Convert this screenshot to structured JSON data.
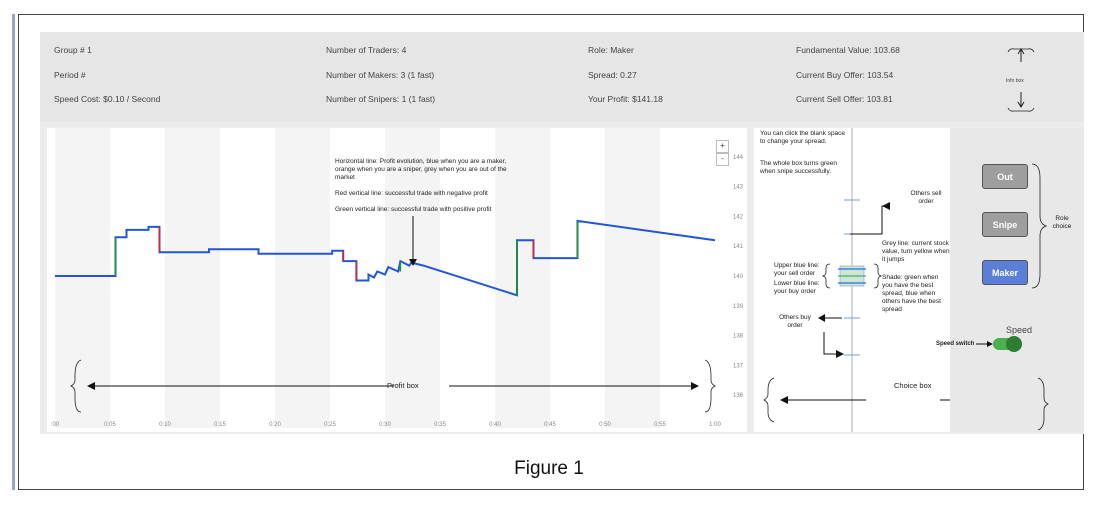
{
  "info": {
    "group": "Group # 1",
    "period": "Period #",
    "speed_cost": "Speed Cost: $0.10 / Second",
    "num_traders": "Number of Traders: 4",
    "num_makers": "Number of Makers: 3 (1 fast)",
    "num_snipers": "Number of Snipers: 1 (1 fast)",
    "role": "Role: Maker",
    "spread": "Spread: 0.27",
    "profit": "Your Profit: $141.18",
    "fundamental": "Fundamental Value: 103.68",
    "buy_offer": "Current Buy Offer: 103.54",
    "sell_offer": "Current Sell Offer: 103.81",
    "info_box_label": "Info box"
  },
  "chart": {
    "plus": "+",
    "minus": "-",
    "ann_profit": "Horizontal line: Profit evolution, blue when you are a maker, orange when you are a sniper, grey when you are out of the market",
    "ann_red": "Red vertical line: successful trade with negative profit",
    "ann_green": "Green vertical line: successful trade with positive profit",
    "profit_box_label": "Profit box",
    "colors": {
      "line": "#2255dd",
      "red": "#dd2222",
      "green": "#229922"
    }
  },
  "chart_data": {
    "type": "line",
    "x_ticks": [
      ":00",
      "0:05",
      "0:10",
      "0:15",
      "0:20",
      "0:25",
      "0:30",
      "0:35",
      "0:40",
      "0:45",
      "0:50",
      "0:55",
      "1:00"
    ],
    "y_ticks": [
      "144",
      "143",
      "142",
      "141",
      "140",
      "139",
      "138",
      "137",
      "136"
    ],
    "ylim": [
      135.7,
      144.3
    ],
    "xlim": [
      0,
      60
    ],
    "series": [
      {
        "values": [
          [
            0,
            140.0
          ],
          [
            5.5,
            140.0
          ],
          [
            5.5,
            141.3
          ],
          [
            6.5,
            141.3
          ],
          [
            6.5,
            141.55
          ],
          [
            8.5,
            141.55
          ],
          [
            8.5,
            141.65
          ],
          [
            9.5,
            141.65
          ],
          [
            9.5,
            140.8
          ],
          [
            14,
            140.8
          ],
          [
            14,
            140.9
          ],
          [
            18.5,
            140.9
          ],
          [
            18.5,
            140.75
          ],
          [
            25.2,
            140.75
          ],
          [
            25.2,
            140.85
          ],
          [
            26.2,
            140.85
          ],
          [
            26.2,
            140.5
          ],
          [
            27.4,
            140.5
          ],
          [
            27.4,
            139.85
          ],
          [
            28.5,
            139.85
          ],
          [
            28.5,
            140.05
          ],
          [
            29.0,
            139.95
          ],
          [
            29.3,
            140.15
          ],
          [
            30,
            140.05
          ],
          [
            30.3,
            140.3
          ],
          [
            31.2,
            140.15
          ],
          [
            31.4,
            140.5
          ],
          [
            32.2,
            140.35
          ],
          [
            32.4,
            140.45
          ],
          [
            33.5,
            140.35
          ],
          [
            42,
            139.35
          ],
          [
            42,
            141.2
          ],
          [
            43.5,
            141.2
          ],
          [
            43.5,
            140.6
          ],
          [
            47.5,
            140.6
          ],
          [
            47.5,
            141.85
          ],
          [
            60,
            141.2
          ]
        ]
      }
    ],
    "trades": [
      {
        "x": 5.5,
        "from": 140.0,
        "to": 141.3,
        "kind": "green"
      },
      {
        "x": 9.5,
        "from": 141.65,
        "to": 140.8,
        "kind": "red"
      },
      {
        "x": 26.2,
        "from": 140.85,
        "to": 140.5,
        "kind": "red"
      },
      {
        "x": 27.4,
        "from": 140.5,
        "to": 139.85,
        "kind": "red"
      },
      {
        "x": 31.4,
        "from": 140.15,
        "to": 140.5,
        "kind": "green"
      },
      {
        "x": 42,
        "from": 139.35,
        "to": 141.2,
        "kind": "green"
      },
      {
        "x": 43.5,
        "from": 141.2,
        "to": 140.6,
        "kind": "red"
      },
      {
        "x": 47.5,
        "from": 140.6,
        "to": 141.85,
        "kind": "green"
      }
    ]
  },
  "choice": {
    "note_click": "You can click the blank space to change your spread.",
    "note_whole": "The whole box turns green when snipe successfully.",
    "others_sell": "Others sell order",
    "grey_line": "Grey line: current stock value, turn yellow when it jumps",
    "shade": "Shade: green when you have the best spread, blue when others have the best spread",
    "upper_blue": "Upper blue line: your sell order",
    "lower_blue": "Lower blue line: your buy order",
    "others_buy": "Others buy order",
    "choice_box_label": "Choice box"
  },
  "panel": {
    "out": "Out",
    "snipe": "Snipe",
    "maker": "Maker",
    "role_choice": "Role choice",
    "speed": "Speed",
    "speed_switch": "Speed switch",
    "colors": {
      "out": "#9e9e9e",
      "snipe": "#9e9e9e",
      "maker": "#5b7ed8",
      "toggle": "#4caf50"
    }
  },
  "caption": "Figure 1"
}
